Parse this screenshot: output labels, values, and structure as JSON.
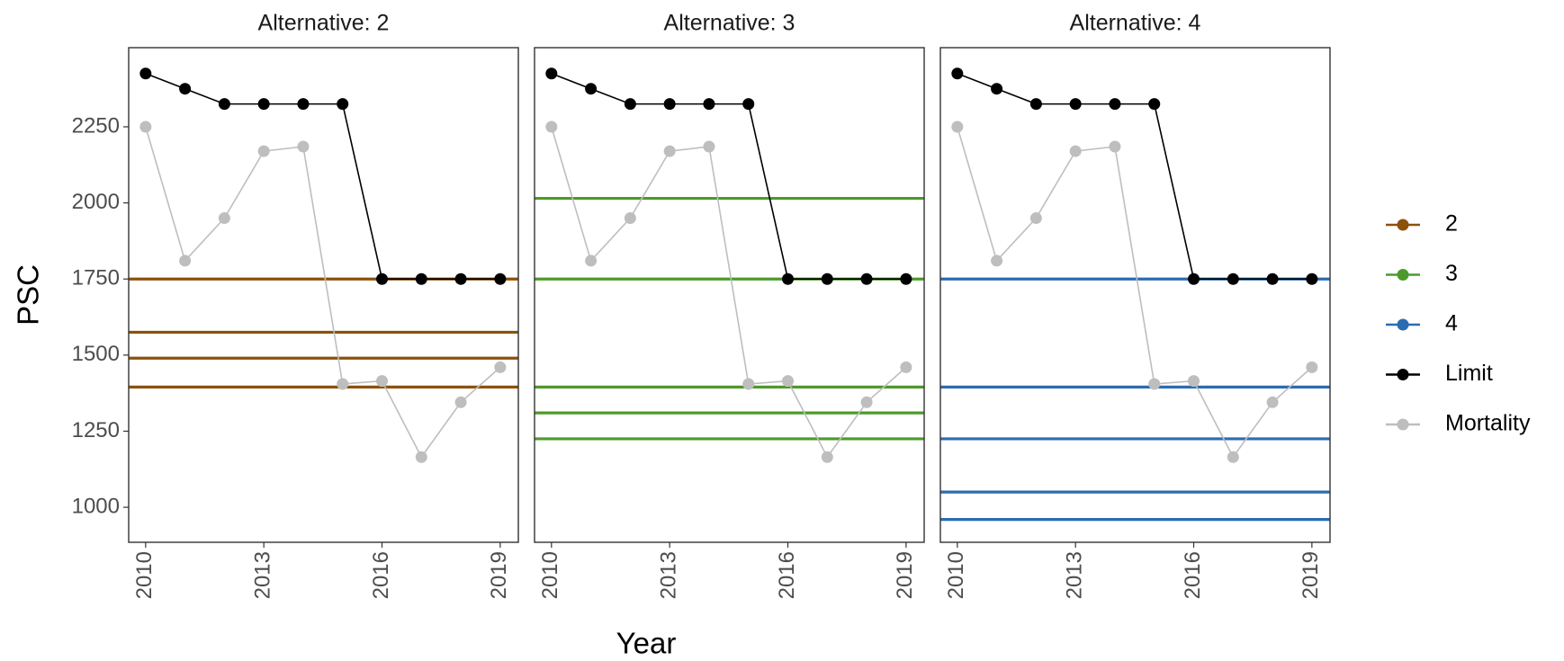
{
  "chart_data": {
    "type": "line",
    "x_label": "Year",
    "y_label": "PSC",
    "x": [
      2010,
      2011,
      2012,
      2013,
      2014,
      2015,
      2016,
      2017,
      2018,
      2019
    ],
    "xlim": [
      2009.57,
      2019.46
    ],
    "xticks": [
      2010,
      2013,
      2016,
      2019
    ],
    "ylim": [
      885,
      2510
    ],
    "yticks": [
      1000,
      1250,
      1500,
      1750,
      2000,
      2250
    ],
    "legend": "right",
    "series": [
      {
        "name": "Limit",
        "color": "#000000",
        "values": [
          2425,
          2375,
          2325,
          2325,
          2325,
          2325,
          1750,
          1750,
          1750,
          1750
        ]
      },
      {
        "name": "Mortality",
        "color": "#bebebe",
        "values": [
          2250,
          1810,
          1950,
          2170,
          2185,
          1405,
          1415,
          1165,
          1345,
          1460
        ]
      }
    ],
    "panels": [
      {
        "title": "Alternative: 2",
        "hlines": {
          "name": "2",
          "color": "#8c510a",
          "values": [
            1750,
            1575,
            1490,
            1395
          ]
        }
      },
      {
        "title": "Alternative: 3",
        "hlines": {
          "name": "3",
          "color": "#4d9a2a",
          "values": [
            2015,
            1750,
            1395,
            1310,
            1225
          ]
        }
      },
      {
        "title": "Alternative: 4",
        "hlines": {
          "name": "4",
          "color": "#2b6cb0",
          "values": [
            1750,
            1395,
            1225,
            1050,
            960
          ]
        }
      }
    ]
  }
}
